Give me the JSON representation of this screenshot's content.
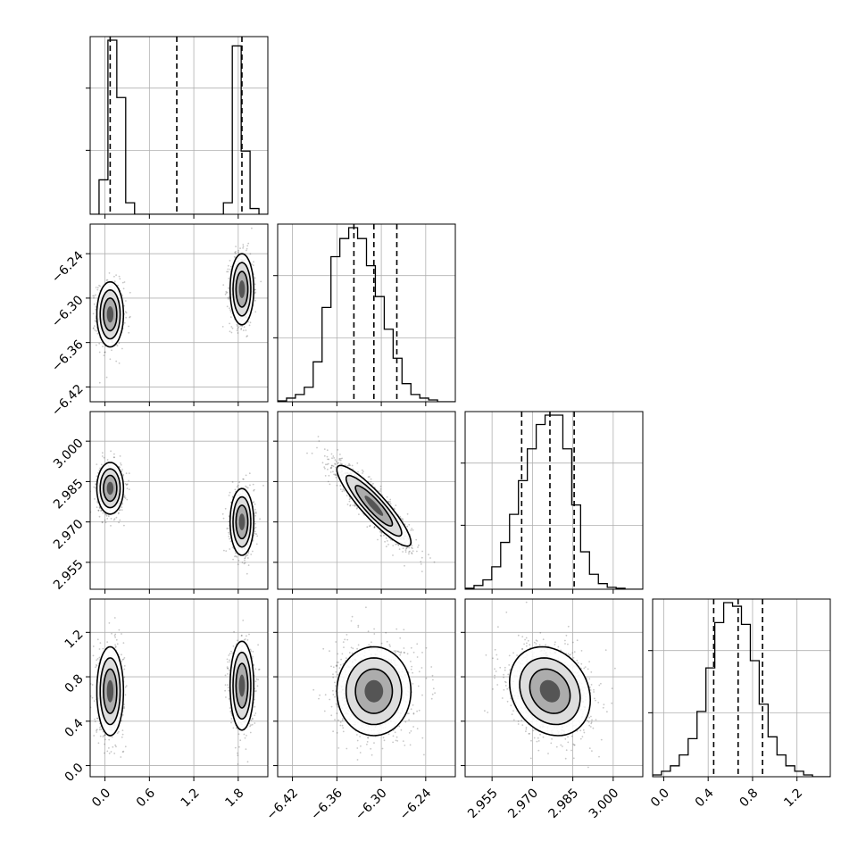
{
  "chart_data": {
    "type": "corner",
    "title": "",
    "n_parameters": 4,
    "grid": true,
    "parameters": [
      {
        "range": [
          -0.2,
          2.2
        ],
        "ticks": [
          0.0,
          0.6,
          1.2,
          1.8
        ],
        "tick_labels": [
          "0.0",
          "0.6",
          "1.2",
          "1.8"
        ],
        "quantiles": [
          0.07,
          0.97,
          1.85
        ],
        "histogram": {
          "edges": [
            -0.2,
            -0.08,
            0.04,
            0.16,
            0.28,
            0.4,
            0.52,
            0.64,
            0.76,
            0.88,
            1.0,
            1.12,
            1.24,
            1.36,
            1.48,
            1.6,
            1.72,
            1.84,
            1.96,
            2.08,
            2.2
          ],
          "counts": [
            0.0,
            0.18,
            0.91,
            0.61,
            0.06,
            0.0,
            0.0,
            0.0,
            0.0,
            0.0,
            0.0,
            0.0,
            0.0,
            0.0,
            0.0,
            0.06,
            0.88,
            0.33,
            0.03,
            0.0
          ]
        }
      },
      {
        "range": [
          -6.44,
          -6.2
        ],
        "ticks": [
          -6.42,
          -6.36,
          -6.3,
          -6.24
        ],
        "tick_labels": [
          "−6.42",
          "−6.36",
          "−6.30",
          "−6.24"
        ],
        "quantiles": [
          -6.337,
          -6.31,
          -6.279
        ],
        "histogram": {
          "edges": [
            -6.44,
            -6.428,
            -6.416,
            -6.404,
            -6.392,
            -6.38,
            -6.368,
            -6.356,
            -6.344,
            -6.332,
            -6.32,
            -6.308,
            -6.296,
            -6.284,
            -6.272,
            -6.26,
            -6.248,
            -6.236,
            -6.224,
            -6.212,
            -6.2
          ],
          "counts": [
            0.005,
            0.02,
            0.04,
            0.08,
            0.22,
            0.52,
            0.8,
            0.9,
            0.96,
            0.9,
            0.75,
            0.58,
            0.4,
            0.24,
            0.1,
            0.04,
            0.02,
            0.01,
            0.0,
            0.0
          ]
        }
      },
      {
        "range": [
          2.945,
          3.011
        ],
        "ticks": [
          2.955,
          2.97,
          2.985,
          3.0
        ],
        "tick_labels": [
          "2.955",
          "2.970",
          "2.985",
          "3.000"
        ],
        "quantiles": [
          2.966,
          2.9765,
          2.9855
        ],
        "histogram": {
          "edges": [
            2.945,
            2.9483,
            2.9516,
            2.9549,
            2.9582,
            2.9615,
            2.9648,
            2.9681,
            2.9714,
            2.9747,
            2.978,
            2.9813,
            2.9846,
            2.9879,
            2.9912,
            2.9945,
            2.9978,
            3.0011,
            3.0044,
            3.0077,
            3.011
          ],
          "counts": [
            0.005,
            0.02,
            0.05,
            0.12,
            0.25,
            0.4,
            0.58,
            0.75,
            0.88,
            0.93,
            0.93,
            0.75,
            0.45,
            0.2,
            0.08,
            0.03,
            0.01,
            0.005,
            0.0,
            0.0
          ]
        }
      },
      {
        "range": [
          -0.1,
          1.5
        ],
        "ticks": [
          0.0,
          0.4,
          0.8,
          1.2
        ],
        "tick_labels": [
          "0.0",
          "0.4",
          "0.8",
          "1.2"
        ],
        "quantiles": [
          0.45,
          0.67,
          0.89
        ],
        "histogram": {
          "edges": [
            -0.1,
            -0.02,
            0.06,
            0.14,
            0.22,
            0.3,
            0.38,
            0.46,
            0.54,
            0.62,
            0.7,
            0.78,
            0.86,
            0.94,
            1.02,
            1.1,
            1.18,
            1.26,
            1.34,
            1.42,
            1.5
          ],
          "counts": [
            0.01,
            0.03,
            0.06,
            0.12,
            0.21,
            0.36,
            0.6,
            0.85,
            0.96,
            0.94,
            0.84,
            0.64,
            0.4,
            0.22,
            0.12,
            0.06,
            0.03,
            0.01,
            0.0,
            0.0
          ]
        }
      }
    ],
    "pair_densities": [
      {
        "row": 1,
        "col": 0,
        "components": [
          {
            "mx": 0.07,
            "my": -6.322,
            "sx": 0.09,
            "sy": 0.022,
            "rho": 0.0,
            "w": 0.5
          },
          {
            "mx": 1.85,
            "my": -6.288,
            "sx": 0.08,
            "sy": 0.024,
            "rho": 0.0,
            "w": 0.5
          }
        ]
      },
      {
        "row": 2,
        "col": 0,
        "components": [
          {
            "mx": 0.07,
            "my": 2.9825,
            "sx": 0.09,
            "sy": 0.0048,
            "rho": 0.0,
            "w": 0.5
          },
          {
            "mx": 1.85,
            "my": 2.97,
            "sx": 0.08,
            "sy": 0.0062,
            "rho": 0.0,
            "w": 0.5
          }
        ]
      },
      {
        "row": 2,
        "col": 1,
        "components": [
          {
            "mx": -6.31,
            "my": 2.976,
            "sx": 0.025,
            "sy": 0.0075,
            "rho": -0.9,
            "w": 1.0
          }
        ]
      },
      {
        "row": 3,
        "col": 0,
        "components": [
          {
            "mx": 0.07,
            "my": 0.67,
            "sx": 0.09,
            "sy": 0.2,
            "rho": 0.0,
            "w": 0.5
          },
          {
            "mx": 1.85,
            "my": 0.72,
            "sx": 0.08,
            "sy": 0.2,
            "rho": 0.0,
            "w": 0.5
          }
        ]
      },
      {
        "row": 3,
        "col": 1,
        "components": [
          {
            "mx": -6.31,
            "my": 0.67,
            "sx": 0.025,
            "sy": 0.2,
            "rho": 0.0,
            "w": 1.0
          }
        ]
      },
      {
        "row": 3,
        "col": 2,
        "components": [
          {
            "mx": 2.9765,
            "my": 0.67,
            "sx": 0.0075,
            "sy": 0.2,
            "rho": -0.2,
            "w": 1.0
          }
        ]
      }
    ]
  }
}
